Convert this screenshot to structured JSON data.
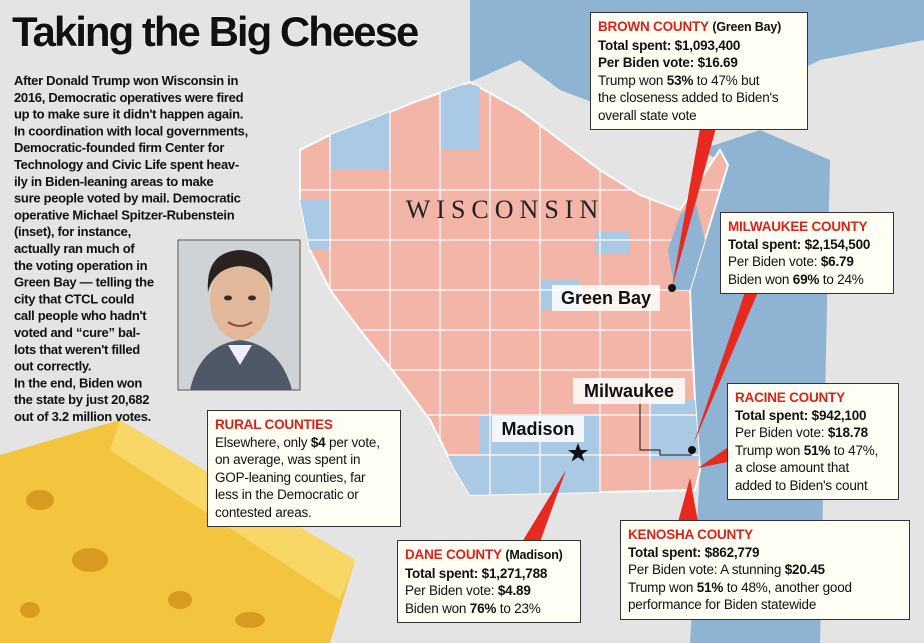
{
  "title": "Taking the Big Cheese",
  "intro": [
    "After Donald Trump won Wisconsin in",
    "2016, Democratic operatives were fired",
    "up to make sure it didn't happen again.",
    "In coordination with local governments,",
    "Democratic-founded firm Center for",
    "Technology and Civic Life spent heav-",
    "ily in Biden-leaning areas to make",
    "sure people voted by mail. Democratic",
    "operative Michael Spitzer-Rubenstein",
    "(inset), for instance,",
    "actually ran much of",
    "the voting operation in",
    "Green Bay — telling the",
    "city that CTCL could",
    "call people who hadn't",
    "voted and “cure” bal-",
    "lots that weren't filled",
    "out correctly.",
    "In the end, Biden won",
    "the state by just 20,682",
    "out of 3.2 million votes."
  ],
  "state_label": "WISCONSIN",
  "cities": [
    "Green Bay",
    "Milwaukee",
    "Madison"
  ],
  "callouts": [
    {
      "title": "BROWN COUNTY",
      "subtitle": "(Green Bay)",
      "lines": [
        [
          {
            "text": "Total spent: $1,093,400",
            "bold": true
          }
        ],
        [
          {
            "text": "Per Biden vote: $16.69",
            "bold": true
          }
        ],
        [
          "Trump won ",
          {
            "text": "53%",
            "bold": true
          },
          " to 47% but"
        ],
        [
          "the closeness added to Biden's"
        ],
        [
          "overall state vote"
        ]
      ]
    },
    {
      "title": "MILWAUKEE COUNTY",
      "lines": [
        [
          {
            "text": "Total spent: $2,154,500",
            "bold": true
          }
        ],
        [
          "Per Biden vote: ",
          {
            "text": "$6.79",
            "bold": true
          }
        ],
        [
          "Biden won ",
          {
            "text": "69%",
            "bold": true
          },
          " to 24%"
        ]
      ]
    },
    {
      "title": "RACINE COUNTY",
      "lines": [
        [
          {
            "text": "Total spent: $942,100",
            "bold": true
          }
        ],
        [
          "Per Biden vote: ",
          {
            "text": "$18.78",
            "bold": true
          }
        ],
        [
          "Trump won ",
          {
            "text": "51%",
            "bold": true
          },
          " to 47%,"
        ],
        [
          "a close amount that"
        ],
        [
          "added to Biden's count"
        ]
      ]
    },
    {
      "title": "KENOSHA COUNTY",
      "lines": [
        [
          {
            "text": "Total spent: $862,779",
            "bold": true
          }
        ],
        [
          "Per Biden vote: A stunning ",
          {
            "text": "$20.45",
            "bold": true
          }
        ],
        [
          "Trump won ",
          {
            "text": "51%",
            "bold": true
          },
          " to 48%, another good"
        ],
        [
          "performance for Biden statewide"
        ]
      ]
    },
    {
      "title": "DANE COUNTY",
      "subtitle": "(Madison)",
      "lines": [
        [
          {
            "text": "Total spent: $1,271,788",
            "bold": true
          }
        ],
        [
          "Per Biden vote: ",
          {
            "text": "$4.89",
            "bold": true
          }
        ],
        [
          "Biden won ",
          {
            "text": "76%",
            "bold": true
          },
          " to 23%"
        ]
      ]
    },
    {
      "title": "RURAL COUNTIES",
      "lines": [
        [
          "Elsewhere, only ",
          {
            "text": "$4",
            "bold": true
          },
          " per vote,"
        ],
        [
          "on average, was spent in"
        ],
        [
          "GOP-leaning counties, far"
        ],
        [
          "less in the Democratic or"
        ],
        [
          "contested areas."
        ]
      ]
    }
  ]
}
